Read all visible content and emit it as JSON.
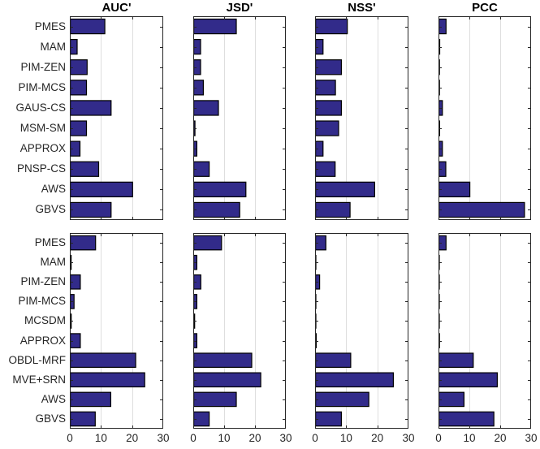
{
  "chart_data": {
    "type": "bar",
    "orientation": "horizontal",
    "title": "",
    "xlabel": "",
    "ylabel": "",
    "xlim": [
      0,
      30
    ],
    "xticks": [
      0,
      10,
      20,
      30
    ],
    "grid": true,
    "legend": "none",
    "bar_color": "#322b8a",
    "bar_edge_color": "#000000",
    "grid_color": "#dedede",
    "axis_color": "#262626",
    "metrics": [
      "AUC'",
      "JSD'",
      "NSS'",
      "PCC"
    ],
    "panels": [
      {
        "row_label": "top",
        "categories": [
          "PMES",
          "MAM",
          "PIM-ZEN",
          "PIM-MCS",
          "GAUS-CS",
          "MSM-SM",
          "APPROX",
          "PNSP-CS",
          "AWS",
          "GBVS"
        ],
        "series": [
          {
            "name": "AUC'",
            "values": [
              11.1,
              2.2,
              5.4,
              5.2,
              13.1,
              5.2,
              3.1,
              9.1,
              20.0,
              13.1
            ]
          },
          {
            "name": "JSD'",
            "values": [
              13.8,
              2.2,
              2.2,
              3.1,
              8.0,
              0.4,
              1.0,
              5.0,
              16.9,
              14.9
            ]
          },
          {
            "name": "NSS'",
            "values": [
              10.2,
              2.4,
              8.3,
              6.4,
              8.3,
              7.4,
              2.4,
              6.3,
              19.0,
              11.1
            ]
          },
          {
            "name": "PCC",
            "values": [
              2.3,
              0.25,
              0.15,
              0.15,
              1.1,
              0.2,
              1.1,
              2.2,
              10.0,
              27.7
            ]
          }
        ]
      },
      {
        "row_label": "bottom",
        "categories": [
          "PMES",
          "MAM",
          "PIM-ZEN",
          "PIM-MCS",
          "MCSDM",
          "APPROX",
          "OBDL-MRF",
          "MVE+SRN",
          "AWS",
          "GBVS"
        ],
        "series": [
          {
            "name": "AUC'",
            "values": [
              8.1,
              0.25,
              3.2,
              1.2,
              0.3,
              3.2,
              21.0,
              23.9,
              13.0,
              8.0
            ]
          },
          {
            "name": "JSD'",
            "values": [
              9.0,
              1.0,
              2.3,
              1.0,
              0.3,
              1.0,
              18.8,
              21.7,
              13.8,
              5.0
            ]
          },
          {
            "name": "NSS'",
            "values": [
              3.3,
              0.1,
              1.3,
              0.1,
              0.1,
              0.2,
              11.3,
              25.0,
              17.1,
              8.3
            ]
          },
          {
            "name": "PCC",
            "values": [
              2.3,
              0.1,
              0.1,
              0.1,
              0.05,
              0.15,
              11.1,
              18.9,
              8.1,
              17.8
            ]
          }
        ]
      }
    ]
  }
}
